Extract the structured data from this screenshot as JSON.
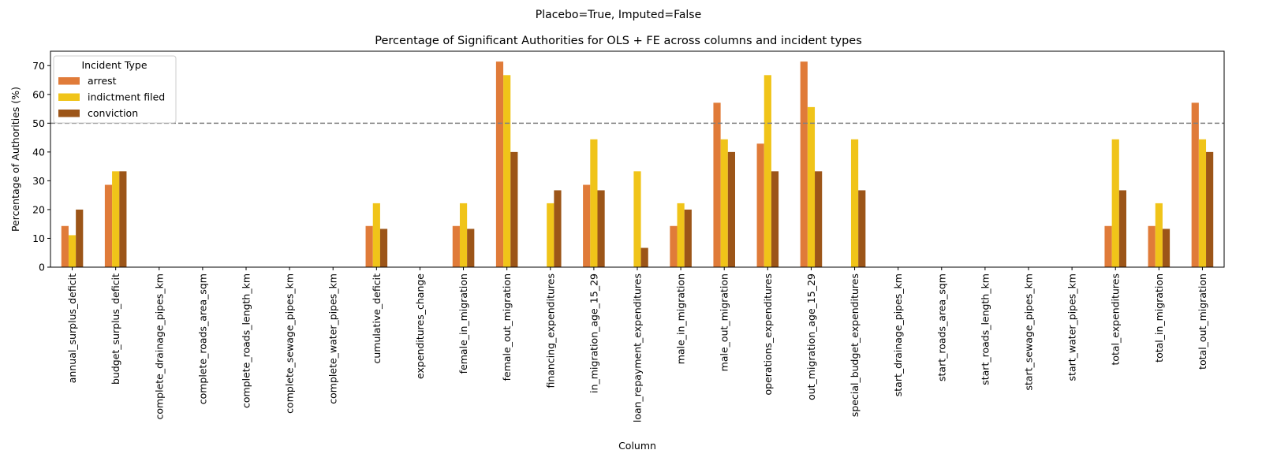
{
  "suptitle": "Placebo=True, Imputed=False",
  "chart_data": {
    "type": "bar",
    "title": "Percentage of Significant Authorities for OLS + FE across columns and incident types",
    "xlabel": "Column",
    "ylabel": "Percentage of Authorities (%)",
    "ylim": [
      0,
      75
    ],
    "yticks": [
      0,
      10,
      20,
      30,
      40,
      50,
      60,
      70
    ],
    "grid": false,
    "reference_line": {
      "y": 50,
      "style": "dashed",
      "color": "#808080"
    },
    "legend": {
      "title": "Incident Type",
      "placement": "top-left"
    },
    "categories": [
      "annual_surplus_deficit",
      "budget_surplus_deficit",
      "complete_drainage_pipes_km",
      "complete_roads_area_sqm",
      "complete_roads_length_km",
      "complete_sewage_pipes_km",
      "complete_water_pipes_km",
      "cumulative_deficit",
      "expenditures_change",
      "female_in_migration",
      "female_out_migration",
      "financing_expenditures",
      "in_migration_age_15_29",
      "loan_repayment_expenditures",
      "male_in_migration",
      "male_out_migration",
      "operations_expenditures",
      "out_migration_age_15_29",
      "special_budget_expenditures",
      "start_drainage_pipes_km",
      "start_roads_area_sqm",
      "start_roads_length_km",
      "start_sewage_pipes_km",
      "start_water_pipes_km",
      "total_expenditures",
      "total_in_migration",
      "total_out_migration"
    ],
    "series": [
      {
        "name": "arrest",
        "color": "#E07B39",
        "values": [
          14.3,
          28.6,
          0,
          0,
          0,
          0,
          0,
          14.3,
          0,
          14.3,
          71.4,
          0,
          28.6,
          0,
          14.3,
          57.1,
          42.9,
          71.4,
          0,
          0,
          0,
          0,
          0,
          0,
          14.3,
          14.3,
          57.1
        ]
      },
      {
        "name": "indictment filed",
        "color": "#F0C419",
        "values": [
          11.1,
          33.3,
          0,
          0,
          0,
          0,
          0,
          22.2,
          0,
          22.2,
          66.7,
          22.2,
          44.4,
          33.3,
          22.2,
          44.4,
          66.7,
          55.6,
          44.4,
          0,
          0,
          0,
          0,
          0,
          44.4,
          22.2,
          44.4
        ]
      },
      {
        "name": "conviction",
        "color": "#9C5518",
        "values": [
          20.0,
          33.3,
          0,
          0,
          0,
          0,
          0,
          13.3,
          0,
          13.3,
          40.0,
          26.7,
          26.7,
          6.7,
          20.0,
          40.0,
          33.3,
          33.3,
          26.7,
          0,
          0,
          0,
          0,
          0,
          26.7,
          13.3,
          40.0
        ]
      }
    ]
  }
}
